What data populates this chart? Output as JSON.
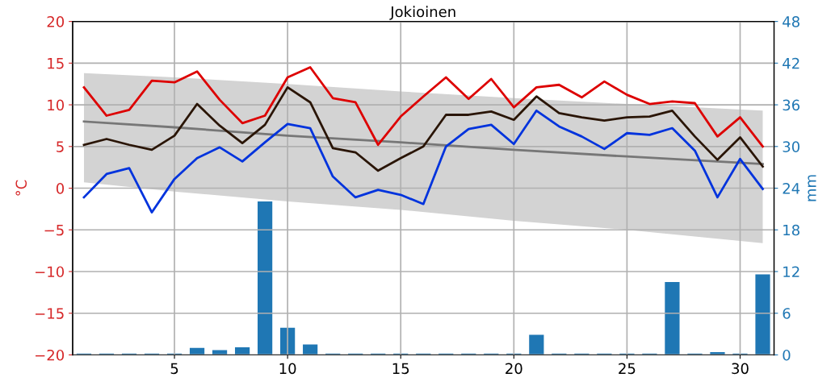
{
  "chart_data": {
    "type": "line",
    "title": "Jokioinen",
    "ylabel": "°C",
    "y2label": "mm",
    "x": [
      1,
      2,
      3,
      4,
      5,
      6,
      7,
      8,
      9,
      10,
      11,
      12,
      13,
      14,
      15,
      16,
      17,
      18,
      19,
      20,
      21,
      22,
      23,
      24,
      25,
      26,
      27,
      28,
      29,
      30,
      31
    ],
    "xlim": [
      0.5,
      31.5
    ],
    "xticks": [
      5,
      10,
      15,
      20,
      25,
      30
    ],
    "ylim": [
      -20,
      20
    ],
    "yticks": [
      -20,
      -15,
      -10,
      -5,
      0,
      5,
      10,
      15,
      20
    ],
    "y2lim": [
      0,
      48
    ],
    "y2ticks": [
      0,
      6,
      12,
      18,
      24,
      30,
      36,
      42,
      48
    ],
    "grid": true,
    "series": [
      {
        "color": "#777777",
        "x": [
          1,
          5,
          10,
          15,
          20,
          25,
          31
        ],
        "values": [
          8.0,
          7.3,
          6.3,
          5.5,
          4.6,
          3.8,
          2.9
        ],
        "lower": [
          0.7,
          -0.4,
          -1.6,
          -2.6,
          -3.9,
          -5.0,
          -6.6
        ],
        "upper": [
          13.8,
          13.3,
          12.5,
          11.6,
          10.8,
          10.1,
          9.3
        ]
      },
      {
        "type": "bar",
        "axis": "y2",
        "color": "#1f77b4",
        "values": [
          0.2,
          0.2,
          0.2,
          0.2,
          0.2,
          1.0,
          0.7,
          1.1,
          22.1,
          3.9,
          1.5,
          0.2,
          0.2,
          0.2,
          0.2,
          0.2,
          0.2,
          0.2,
          0.2,
          0.2,
          2.9,
          0.2,
          0.2,
          0.2,
          0.2,
          0.2,
          10.5,
          0.2,
          0.4,
          0.2,
          11.6
        ]
      },
      {
        "color": "#dd0000",
        "values": [
          12.1,
          8.7,
          9.4,
          12.9,
          12.7,
          14.0,
          10.6,
          7.8,
          8.7,
          13.3,
          14.5,
          10.8,
          10.3,
          5.2,
          8.6,
          11.0,
          13.3,
          10.7,
          13.1,
          9.7,
          12.1,
          12.4,
          10.9,
          12.8,
          11.2,
          10.1,
          10.4,
          10.2,
          6.2,
          8.5,
          5.0
        ]
      },
      {
        "color": "#2a1506",
        "values": [
          5.2,
          5.9,
          5.2,
          4.6,
          6.3,
          10.1,
          7.5,
          5.4,
          7.6,
          12.1,
          10.3,
          4.8,
          4.3,
          2.1,
          3.6,
          5.0,
          8.8,
          8.8,
          9.2,
          8.2,
          11.0,
          9.0,
          8.5,
          8.1,
          8.5,
          8.6,
          9.3,
          6.2,
          3.4,
          6.1,
          2.6
        ]
      },
      {
        "color": "#0033dd",
        "values": [
          -1.1,
          1.7,
          2.4,
          -2.9,
          1.1,
          3.6,
          4.9,
          3.2,
          5.5,
          7.7,
          7.2,
          1.4,
          -1.1,
          -0.2,
          -0.8,
          -1.9,
          5.0,
          7.1,
          7.6,
          5.3,
          9.3,
          7.4,
          6.2,
          4.7,
          6.6,
          6.4,
          7.2,
          4.5,
          -1.1,
          3.5,
          -0.1
        ]
      }
    ]
  }
}
